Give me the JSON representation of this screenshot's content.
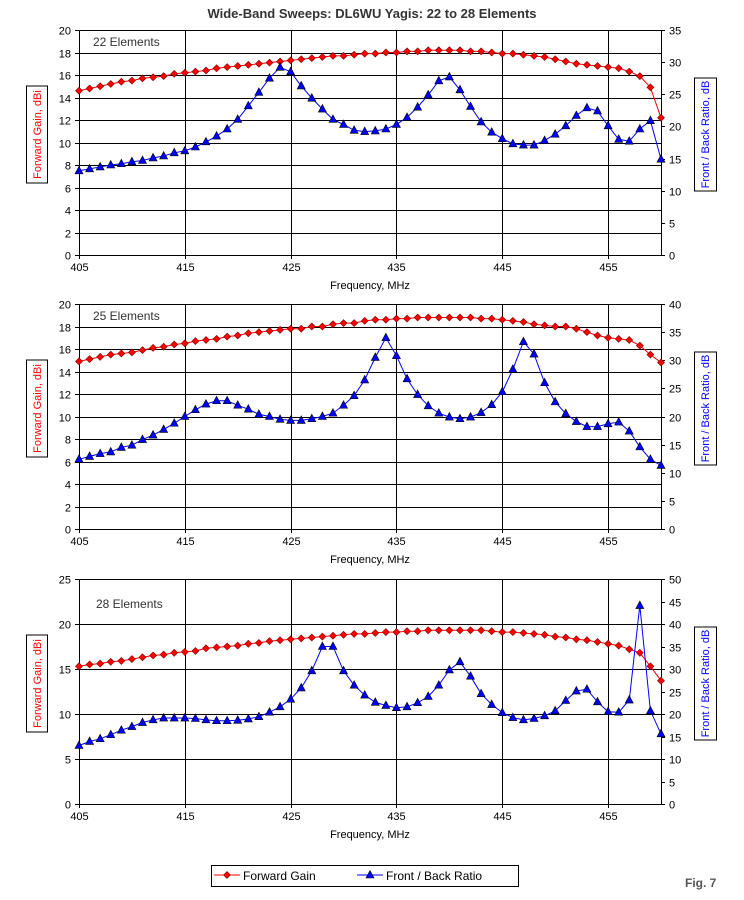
{
  "title": "Wide-Band Sweeps:  DL6WU Yagis: 22 to 28 Elements",
  "figure_label": "Fig. 7",
  "legend": [
    {
      "name": "Forward Gain",
      "color": "#ff0000",
      "marker": "diamond"
    },
    {
      "name": "Front / Back Ratio",
      "color": "#0000ff",
      "marker": "triangle"
    }
  ],
  "colors": {
    "gain": "#ff0000",
    "fb": "#0000ff",
    "grid": "#000000"
  },
  "chart_data": [
    {
      "type": "line",
      "label": "22 Elements",
      "xlabel": "Frequency, MHz",
      "ylabel_left": "Forward Gain,  dBi",
      "ylabel_right": "Front / Back Ratio,  dB",
      "xlim": [
        405,
        460
      ],
      "xticks": [
        405,
        415,
        425,
        435,
        445,
        455
      ],
      "ylim_left": [
        0,
        20
      ],
      "yticks_left_step": 2,
      "ylim_right": [
        0,
        35
      ],
      "yticks_right_step": 5,
      "grid": true,
      "x_start": 405,
      "x_step": 1,
      "series": [
        {
          "name": "Forward Gain",
          "axis": "left",
          "values": [
            14.6,
            14.8,
            15.0,
            15.2,
            15.4,
            15.5,
            15.7,
            15.8,
            15.9,
            16.1,
            16.2,
            16.3,
            16.4,
            16.6,
            16.7,
            16.8,
            16.9,
            17.0,
            17.1,
            17.2,
            17.3,
            17.4,
            17.5,
            17.6,
            17.7,
            17.7,
            17.8,
            17.9,
            17.9,
            18.0,
            18.0,
            18.1,
            18.1,
            18.2,
            18.2,
            18.2,
            18.2,
            18.1,
            18.1,
            18.0,
            17.9,
            17.9,
            17.8,
            17.7,
            17.6,
            17.4,
            17.2,
            17.0,
            16.9,
            16.8,
            16.7,
            16.6,
            16.3,
            15.9,
            14.9,
            12.2
          ]
        },
        {
          "name": "Front / Back Ratio",
          "axis": "right",
          "values": [
            13.1,
            13.4,
            13.7,
            14.0,
            14.2,
            14.5,
            14.7,
            15.1,
            15.4,
            15.9,
            16.2,
            16.8,
            17.6,
            18.5,
            19.6,
            21.1,
            23.2,
            25.3,
            27.5,
            29.2,
            28.5,
            26.3,
            24.4,
            22.7,
            21.1,
            20.3,
            19.4,
            19.2,
            19.3,
            19.6,
            20.3,
            21.4,
            23.0,
            24.9,
            27.1,
            27.7,
            25.7,
            23.1,
            20.7,
            19.1,
            18.1,
            17.3,
            17.1,
            17.1,
            17.8,
            18.8,
            20.1,
            21.7,
            22.9,
            22.4,
            20.1,
            18.0,
            17.7,
            19.6,
            20.9,
            14.9
          ]
        }
      ]
    },
    {
      "type": "line",
      "label": "25 Elements",
      "xlabel": "Frequency, MHz",
      "ylabel_left": "Forward Gain,  dBi",
      "ylabel_right": "Front / Back Ratio,  dB",
      "xlim": [
        405,
        460
      ],
      "xticks": [
        405,
        415,
        425,
        435,
        445,
        455
      ],
      "ylim_left": [
        0,
        20
      ],
      "yticks_left_step": 2,
      "ylim_right": [
        0,
        40
      ],
      "yticks_right_step": 5,
      "grid": true,
      "x_start": 405,
      "x_step": 1,
      "series": [
        {
          "name": "Forward Gain",
          "axis": "left",
          "values": [
            14.9,
            15.1,
            15.3,
            15.5,
            15.6,
            15.7,
            15.9,
            16.1,
            16.2,
            16.4,
            16.5,
            16.7,
            16.8,
            16.9,
            17.1,
            17.2,
            17.4,
            17.5,
            17.6,
            17.7,
            17.8,
            17.8,
            18.0,
            18.0,
            18.2,
            18.3,
            18.3,
            18.5,
            18.6,
            18.6,
            18.7,
            18.7,
            18.8,
            18.8,
            18.8,
            18.8,
            18.8,
            18.8,
            18.7,
            18.7,
            18.6,
            18.5,
            18.4,
            18.2,
            18.1,
            18.0,
            18.0,
            17.8,
            17.5,
            17.2,
            17.0,
            16.9,
            16.8,
            16.3,
            15.5,
            14.8
          ]
        },
        {
          "name": "Front / Back Ratio",
          "axis": "right",
          "values": [
            12.4,
            12.9,
            13.4,
            13.7,
            14.5,
            14.9,
            15.9,
            16.7,
            17.7,
            18.8,
            20.0,
            21.2,
            22.2,
            22.8,
            22.8,
            22.0,
            21.3,
            20.4,
            20.0,
            19.5,
            19.3,
            19.3,
            19.6,
            20.0,
            20.6,
            22.0,
            23.7,
            26.5,
            30.5,
            34.0,
            30.8,
            26.7,
            23.9,
            21.9,
            20.6,
            19.9,
            19.6,
            19.9,
            20.7,
            22.1,
            24.4,
            28.4,
            33.3,
            31.1,
            26.0,
            22.6,
            20.5,
            19.1,
            18.2,
            18.2,
            18.7,
            19.0,
            17.4,
            14.6,
            12.4,
            11.3
          ]
        }
      ]
    },
    {
      "type": "line",
      "label": "28 Elements",
      "xlabel": "Frequency, MHz",
      "ylabel_left": "Forward Gain,  dBi",
      "ylabel_right": "Front / Back Ratio,  dB",
      "xlim": [
        405,
        460
      ],
      "xticks": [
        405,
        415,
        425,
        435,
        445,
        455
      ],
      "ylim_left": [
        0,
        25
      ],
      "yticks_left_step": 5,
      "ylim_right": [
        0,
        50
      ],
      "yticks_right_step": 5,
      "grid": true,
      "x_start": 405,
      "x_step": 1,
      "series": [
        {
          "name": "Forward Gain",
          "axis": "left",
          "values": [
            15.3,
            15.5,
            15.6,
            15.8,
            15.9,
            16.1,
            16.3,
            16.5,
            16.6,
            16.8,
            16.9,
            17.0,
            17.3,
            17.4,
            17.5,
            17.6,
            17.8,
            17.9,
            18.1,
            18.2,
            18.3,
            18.4,
            18.5,
            18.6,
            18.7,
            18.8,
            18.9,
            18.9,
            19.0,
            19.1,
            19.1,
            19.2,
            19.2,
            19.3,
            19.3,
            19.3,
            19.3,
            19.3,
            19.3,
            19.2,
            19.1,
            19.1,
            19.0,
            18.9,
            18.8,
            18.6,
            18.5,
            18.3,
            18.2,
            18.0,
            17.8,
            17.6,
            17.2,
            16.8,
            15.3,
            13.7
          ]
        },
        {
          "name": "Front / Back Ratio",
          "axis": "right",
          "values": [
            13.0,
            13.9,
            14.5,
            15.4,
            16.4,
            17.2,
            18.1,
            18.7,
            19.1,
            19.1,
            19.1,
            19.0,
            18.7,
            18.5,
            18.5,
            18.6,
            18.9,
            19.4,
            20.4,
            21.6,
            23.3,
            25.8,
            29.6,
            35.0,
            35.0,
            29.6,
            26.4,
            24.2,
            22.6,
            21.9,
            21.4,
            21.6,
            22.5,
            23.9,
            26.4,
            29.8,
            31.6,
            28.4,
            24.5,
            22.1,
            20.3,
            19.2,
            18.7,
            19.0,
            19.6,
            20.7,
            23.0,
            25.1,
            25.5,
            22.7,
            20.5,
            20.4,
            23.1,
            44.1,
            20.7,
            15.6
          ]
        }
      ]
    }
  ]
}
